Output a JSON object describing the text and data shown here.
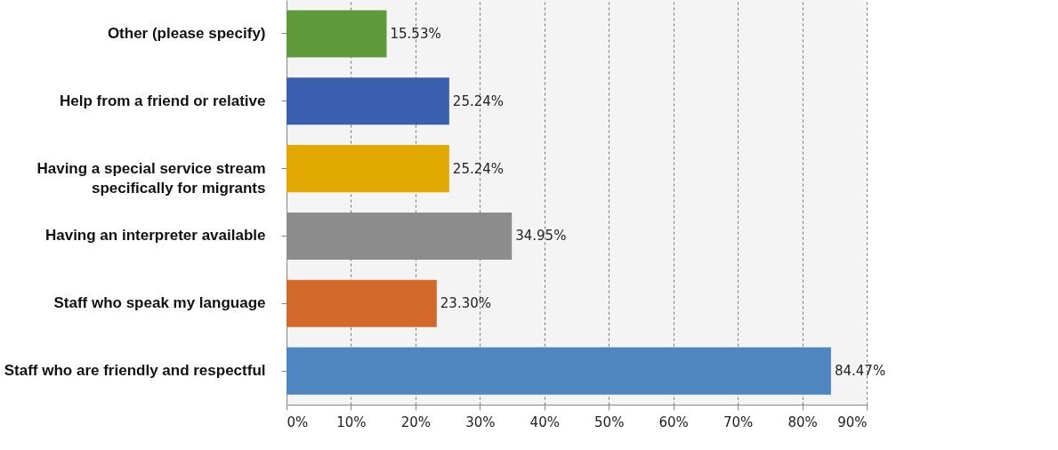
{
  "chart_data": {
    "type": "bar",
    "orientation": "horizontal",
    "categories": [
      "Other (please specify)",
      "Help from a friend or relative",
      "Having a special service stream\nspecifically for migrants",
      "Having an interpreter available",
      "Staff who speak my language",
      "Staff who are friendly and respectful"
    ],
    "values": [
      15.53,
      25.24,
      25.24,
      34.95,
      23.3,
      84.47
    ],
    "colors": [
      "#5e9a3a",
      "#3a5fae",
      "#e0a800",
      "#8c8c8c",
      "#d2682a",
      "#4f86c0"
    ],
    "value_labels": [
      "15.53%",
      "25.24%",
      "25.24%",
      "34.95%",
      "23.30%",
      "84.47%"
    ],
    "xlim": [
      0,
      90
    ],
    "xticks": [
      {
        "value": 0,
        "label": "0%"
      },
      {
        "value": 10,
        "label": "10%"
      },
      {
        "value": 20,
        "label": "20%"
      },
      {
        "value": 30,
        "label": "30%"
      },
      {
        "value": 40,
        "label": "40%"
      },
      {
        "value": 50,
        "label": "50%"
      },
      {
        "value": 60,
        "label": "60%"
      },
      {
        "value": 70,
        "label": "70%"
      },
      {
        "value": 80,
        "label": "80%"
      },
      {
        "value": 90,
        "label": "90%"
      }
    ],
    "grid": "x"
  }
}
